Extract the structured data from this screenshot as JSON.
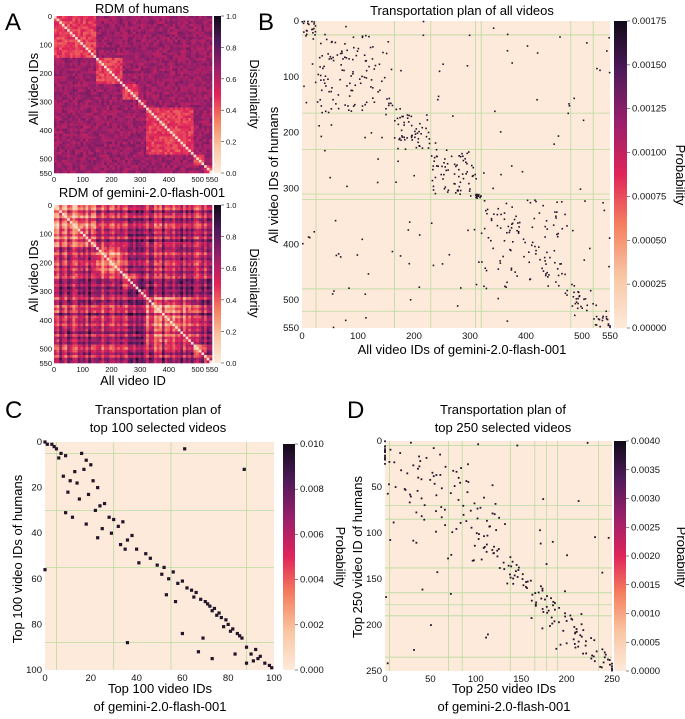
{
  "colors": {
    "background": "#fdeadb",
    "grid": "#b8dba0",
    "dot": "#22142a",
    "cmap": [
      "#fdeadb",
      "#f9c6a3",
      "#f47e5e",
      "#e0245a",
      "#9a1f6a",
      "#4e1a5a",
      "#110a18"
    ]
  },
  "chart_data": [
    {
      "id": "A1",
      "panel_label": "A",
      "type": "heatmap",
      "title": "RDM of humans",
      "xlabel": "",
      "ylabel": "All video IDs",
      "xticks": [
        "0",
        "100",
        "200",
        "300",
        "400",
        "500",
        "550"
      ],
      "yticks": [
        "0",
        "100",
        "200",
        "300",
        "400",
        "500",
        "550"
      ],
      "colorbar": {
        "label": "Dissimilarity",
        "range": [
          0.0,
          1.0
        ],
        "ticks": [
          "0.0",
          "0.2",
          "0.4",
          "0.6",
          "0.8",
          "1.0"
        ]
      },
      "n": 550,
      "blocks": [
        [
          0,
          140
        ],
        [
          140,
          230
        ],
        [
          230,
          290
        ],
        [
          290,
          320
        ],
        [
          320,
          480
        ],
        [
          480,
          520
        ],
        [
          520,
          550
        ]
      ]
    },
    {
      "id": "A2",
      "type": "heatmap",
      "title": "RDM of gemini-2.0-flash-001",
      "xlabel": "All video ID",
      "ylabel": "All video IDs",
      "xticks": [
        "0",
        "100",
        "200",
        "300",
        "400",
        "500",
        "550"
      ],
      "yticks": [
        "0",
        "100",
        "200",
        "300",
        "400",
        "500",
        "550"
      ],
      "colorbar": {
        "label": "Dissimilarity",
        "range": [
          0.0,
          1.0
        ],
        "ticks": [
          "0.0",
          "0.2",
          "0.4",
          "0.6",
          "0.8",
          "1.0"
        ]
      },
      "n": 550,
      "blocks": [
        [
          0,
          140
        ],
        [
          140,
          230
        ],
        [
          230,
          290
        ],
        [
          290,
          320
        ],
        [
          320,
          480
        ],
        [
          480,
          520
        ],
        [
          520,
          550
        ]
      ]
    },
    {
      "id": "B",
      "panel_label": "B",
      "type": "heatmap",
      "title": "Transportation plan of all videos",
      "xlabel": "All video IDs of gemini-2.0-flash-001",
      "ylabel": "All video IDs of humans",
      "xlim": [
        0,
        550
      ],
      "ylim": [
        0,
        550
      ],
      "xticks": [
        0,
        100,
        200,
        300,
        400,
        500,
        550
      ],
      "yticks": [
        0,
        100,
        200,
        300,
        400,
        500,
        550
      ],
      "grid_lines": [
        25,
        165,
        230,
        310,
        320,
        480,
        520
      ],
      "colorbar": {
        "label": "Probability",
        "range": [
          0.0,
          0.0018
        ],
        "ticks": [
          "0.00000",
          "0.00025",
          "0.00050",
          "0.00075",
          "0.00100",
          "0.00125",
          "0.00150",
          "0.00175"
        ]
      },
      "n_points": 550
    },
    {
      "id": "C",
      "panel_label": "C",
      "type": "heatmap",
      "title": [
        "Transportation plan of",
        "top 100 selected videos"
      ],
      "xlabel": [
        "Top 100 video IDs",
        "of gemini-2.0-flash-001"
      ],
      "ylabel": "Top 100 video IDs of humans",
      "xlim": [
        0,
        100
      ],
      "ylim": [
        0,
        100
      ],
      "xticks": [
        0,
        20,
        40,
        60,
        80,
        100
      ],
      "yticks": [
        0,
        20,
        40,
        60,
        80,
        100
      ],
      "grid_lines": [
        5,
        30,
        55,
        88
      ],
      "colorbar": {
        "label": "Probability",
        "range": [
          0.0,
          0.01
        ],
        "ticks": [
          "0.000",
          "0.002",
          "0.004",
          "0.006",
          "0.008",
          "0.010"
        ]
      },
      "points": [
        [
          0,
          0
        ],
        [
          1,
          1
        ],
        [
          3,
          1
        ],
        [
          4,
          2
        ],
        [
          5,
          3
        ],
        [
          7,
          5
        ],
        [
          6,
          7
        ],
        [
          9,
          6
        ],
        [
          16,
          5
        ],
        [
          18,
          8
        ],
        [
          20,
          10
        ],
        [
          17,
          12
        ],
        [
          13,
          13
        ],
        [
          8,
          15
        ],
        [
          11,
          17
        ],
        [
          14,
          18
        ],
        [
          21,
          17
        ],
        [
          23,
          20
        ],
        [
          10,
          22
        ],
        [
          19,
          23
        ],
        [
          15,
          25
        ],
        [
          26,
          27
        ],
        [
          24,
          28
        ],
        [
          9,
          31
        ],
        [
          22,
          30
        ],
        [
          28,
          33
        ],
        [
          12,
          33
        ],
        [
          18,
          36
        ],
        [
          30,
          34
        ],
        [
          25,
          38
        ],
        [
          34,
          35
        ],
        [
          32,
          37
        ],
        [
          29,
          40
        ],
        [
          23,
          42
        ],
        [
          36,
          43
        ],
        [
          38,
          41
        ],
        [
          33,
          45
        ],
        [
          40,
          47
        ],
        [
          35,
          47
        ],
        [
          44,
          49
        ],
        [
          46,
          51
        ],
        [
          41,
          53
        ],
        [
          49,
          54
        ],
        [
          52,
          55
        ],
        [
          56,
          57
        ],
        [
          51,
          58
        ],
        [
          54,
          60
        ],
        [
          60,
          61
        ],
        [
          58,
          62
        ],
        [
          62,
          64
        ],
        [
          64,
          65
        ],
        [
          66,
          66
        ],
        [
          65,
          68
        ],
        [
          68,
          69
        ],
        [
          70,
          70
        ],
        [
          71,
          71
        ],
        [
          72,
          72
        ],
        [
          74,
          73
        ],
        [
          73,
          74
        ],
        [
          76,
          75
        ],
        [
          75,
          76
        ],
        [
          77,
          77
        ],
        [
          79,
          78
        ],
        [
          80,
          80
        ],
        [
          78,
          81
        ],
        [
          82,
          82
        ],
        [
          81,
          83
        ],
        [
          84,
          84
        ],
        [
          85,
          85
        ],
        [
          86,
          86
        ],
        [
          60,
          84
        ],
        [
          69,
          86
        ],
        [
          36,
          88
        ],
        [
          88,
          90
        ],
        [
          92,
          91
        ],
        [
          90,
          93
        ],
        [
          94,
          94
        ],
        [
          93,
          95
        ],
        [
          91,
          96
        ],
        [
          96,
          97
        ],
        [
          98,
          98
        ],
        [
          99,
          99
        ],
        [
          87,
          12
        ],
        [
          61,
          3
        ],
        [
          0,
          56
        ],
        [
          67,
          92
        ],
        [
          73,
          95
        ],
        [
          83,
          93
        ],
        [
          57,
          70
        ],
        [
          53,
          67
        ],
        [
          88,
          97
        ]
      ]
    },
    {
      "id": "D",
      "panel_label": "D",
      "type": "heatmap",
      "title": [
        "Transportation plan of",
        "top 250 selected videos"
      ],
      "xlabel": [
        "Top 250 video IDs",
        "of gemini-2.0-flash-001"
      ],
      "ylabel": "Top 250 video ID of humans",
      "xlim": [
        0,
        250
      ],
      "ylim": [
        0,
        250
      ],
      "xticks": [
        0,
        50,
        100,
        150,
        200,
        250
      ],
      "yticks": [
        0,
        50,
        100,
        150,
        200,
        250
      ],
      "grid_lines": [
        5,
        70,
        85,
        138,
        165,
        178,
        190,
        235
      ],
      "colorbar": {
        "label": "Probability",
        "range": [
          0.0,
          0.004
        ],
        "ticks": [
          "0.0000",
          "0.0005",
          "0.0010",
          "0.0015",
          "0.0020",
          "0.0025",
          "0.0030",
          "0.0035",
          "0.0040"
        ]
      },
      "n_points": 250
    }
  ]
}
